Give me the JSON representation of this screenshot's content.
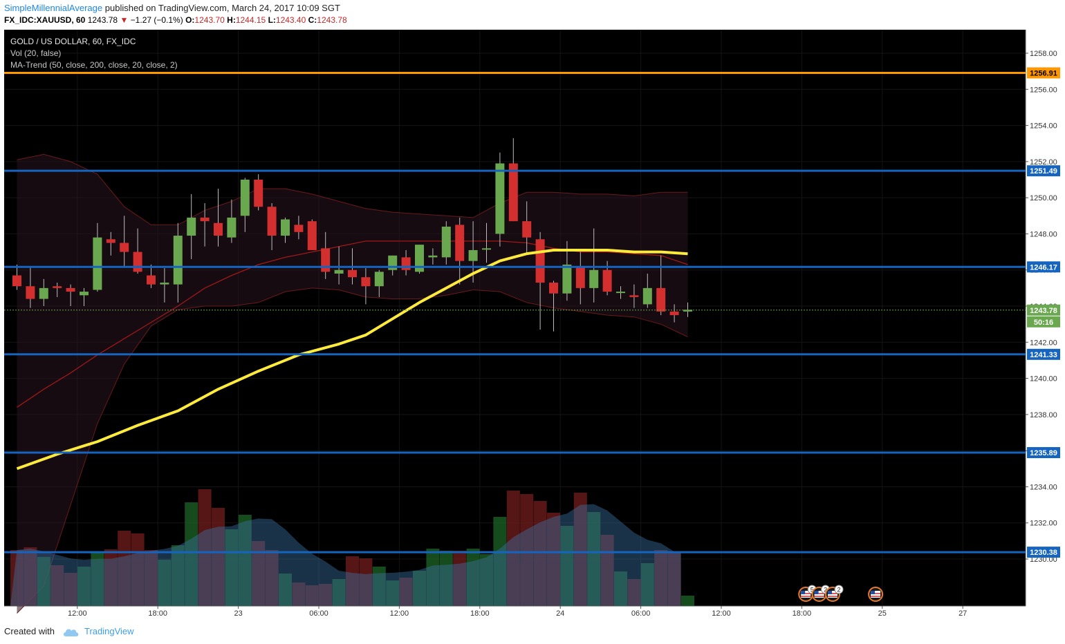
{
  "header": {
    "author": "SimpleMillennialAverage",
    "published": "published on TradingView.com, March 24, 2017 10:09 SGT",
    "symbol": "FX_IDC:XAUUSD, 60",
    "last": "1243.78",
    "change_arrow": "▼",
    "change": "−1.27 (−0.1%)",
    "o_label": "O:",
    "o": "1243.70",
    "h_label": "H:",
    "h": "1244.15",
    "l_label": "L:",
    "l": "1243.40",
    "c_label": "C:",
    "c": "1243.78"
  },
  "legend": {
    "title": "GOLD / US DOLLAR, 60, FX_IDC",
    "vol": "Vol (20, false)",
    "ma": "MA-Trend (50, close, 200, close, 20, close, 2)"
  },
  "footer": {
    "created_with": "Created with",
    "brand": "TradingView"
  },
  "colors": {
    "bg": "#000000",
    "up": "#6aa84f",
    "down": "#d32f2f",
    "ma50": "#ffeb3b",
    "hline_blue": "#1565c0",
    "hline_orange": "#ff9800",
    "axis_text": "#333333"
  },
  "chart_data": {
    "type": "candlestick",
    "ylim": [
      1227.4,
      1259.3
    ],
    "y_ticks": [
      1258,
      1256,
      1254,
      1252,
      1250,
      1248,
      1246,
      1244,
      1242,
      1240,
      1238,
      1236,
      1234,
      1232,
      1230
    ],
    "x_ticks": [
      {
        "label": "12:00",
        "index": 4.5
      },
      {
        "label": "18:00",
        "index": 10.5
      },
      {
        "label": "23",
        "index": 16.5
      },
      {
        "label": "06:00",
        "index": 22.5
      },
      {
        "label": "12:00",
        "index": 28.5
      },
      {
        "label": "18:00",
        "index": 34.5
      },
      {
        "label": "24",
        "index": 40.5
      },
      {
        "label": "06:00",
        "index": 46.5
      },
      {
        "label": "12:00",
        "index": 52.5
      },
      {
        "label": "18:00",
        "index": 58.5
      },
      {
        "label": "25",
        "index": 64.5
      },
      {
        "label": "27",
        "index": 70.5
      }
    ],
    "candles": [
      [
        1245.7,
        1246.3,
        1244.9,
        1245.1
      ],
      [
        1245.1,
        1246.2,
        1243.9,
        1244.4
      ],
      [
        1244.4,
        1245.5,
        1244.0,
        1245.0
      ],
      [
        1245.1,
        1245.3,
        1244.5,
        1245.0
      ],
      [
        1245.0,
        1245.2,
        1244.0,
        1244.8
      ],
      [
        1244.6,
        1245.0,
        1244.0,
        1244.8
      ],
      [
        1244.9,
        1248.6,
        1244.8,
        1247.8
      ],
      [
        1247.7,
        1248.1,
        1246.8,
        1247.5
      ],
      [
        1247.5,
        1249.0,
        1246.2,
        1247.0
      ],
      [
        1247.0,
        1248.3,
        1245.8,
        1245.9
      ],
      [
        1245.7,
        1246.3,
        1245.0,
        1245.2
      ],
      [
        1245.2,
        1246.1,
        1244.2,
        1245.3
      ],
      [
        1245.2,
        1248.6,
        1244.2,
        1247.9
      ],
      [
        1247.9,
        1250.2,
        1246.6,
        1248.9
      ],
      [
        1248.9,
        1249.7,
        1247.3,
        1248.7
      ],
      [
        1248.6,
        1250.5,
        1247.3,
        1247.9
      ],
      [
        1247.8,
        1249.9,
        1247.5,
        1248.9
      ],
      [
        1249.0,
        1251.1,
        1248.1,
        1251.0
      ],
      [
        1251.0,
        1251.3,
        1249.3,
        1249.5
      ],
      [
        1249.5,
        1249.7,
        1247.1,
        1247.9
      ],
      [
        1247.9,
        1248.9,
        1247.5,
        1248.8
      ],
      [
        1248.5,
        1249.0,
        1247.7,
        1248.1
      ],
      [
        1248.7,
        1248.8,
        1247.1,
        1247.1
      ],
      [
        1247.2,
        1248.1,
        1245.5,
        1245.9
      ],
      [
        1245.8,
        1247.3,
        1245.2,
        1246.0
      ],
      [
        1246.0,
        1247.2,
        1245.2,
        1245.6
      ],
      [
        1245.6,
        1246.1,
        1244.1,
        1245.1
      ],
      [
        1245.1,
        1246.0,
        1244.5,
        1245.9
      ],
      [
        1246.0,
        1246.8,
        1245.7,
        1246.8
      ],
      [
        1246.7,
        1247.1,
        1245.7,
        1246.0
      ],
      [
        1245.9,
        1247.4,
        1245.8,
        1247.4
      ],
      [
        1246.7,
        1247.2,
        1246.3,
        1246.8
      ],
      [
        1246.7,
        1248.7,
        1246.3,
        1248.4
      ],
      [
        1248.5,
        1248.9,
        1245.2,
        1246.5
      ],
      [
        1246.5,
        1248.7,
        1245.3,
        1247.1
      ],
      [
        1247.2,
        1248.6,
        1246.4,
        1247.2
      ],
      [
        1248.0,
        1252.5,
        1247.3,
        1251.9
      ],
      [
        1251.9,
        1253.3,
        1248.7,
        1248.7
      ],
      [
        1248.7,
        1249.8,
        1246.9,
        1247.8
      ],
      [
        1247.7,
        1248.1,
        1242.7,
        1245.3
      ],
      [
        1245.3,
        1245.4,
        1242.6,
        1244.7
      ],
      [
        1244.7,
        1247.6,
        1244.3,
        1246.3
      ],
      [
        1246.2,
        1247.0,
        1244.1,
        1245.0
      ],
      [
        1245.0,
        1248.3,
        1244.2,
        1246.0
      ],
      [
        1246.0,
        1246.5,
        1244.6,
        1244.8
      ],
      [
        1244.8,
        1245.1,
        1244.4,
        1244.8
      ],
      [
        1244.6,
        1245.2,
        1243.9,
        1244.5
      ],
      [
        1244.1,
        1245.8,
        1243.9,
        1245.0
      ],
      [
        1245.0,
        1246.8,
        1243.5,
        1243.7
      ],
      [
        1243.7,
        1244.1,
        1243.1,
        1243.5
      ],
      [
        1243.7,
        1244.2,
        1243.4,
        1243.8
      ]
    ],
    "volume": [
      81,
      85,
      71,
      59,
      48,
      57,
      77,
      82,
      109,
      105,
      81,
      67,
      88,
      150,
      169,
      142,
      111,
      132,
      94,
      81,
      47,
      34,
      30,
      32,
      39,
      72,
      69,
      57,
      37,
      41,
      51,
      83,
      80,
      80,
      83,
      75,
      129,
      167,
      162,
      152,
      135,
      116,
      164,
      136,
      103,
      50,
      39,
      62,
      81,
      79,
      15
    ],
    "vol_ylim": [
      0,
      220
    ],
    "ma50": [
      [
        0,
        1235.0
      ],
      [
        3,
        1235.8
      ],
      [
        6,
        1236.5
      ],
      [
        9,
        1237.4
      ],
      [
        12,
        1238.2
      ],
      [
        15,
        1239.4
      ],
      [
        18,
        1240.4
      ],
      [
        21,
        1241.3
      ],
      [
        24,
        1241.9
      ],
      [
        26,
        1242.4
      ],
      [
        28,
        1243.3
      ],
      [
        30,
        1244.2
      ],
      [
        32,
        1245.0
      ],
      [
        34,
        1245.8
      ],
      [
        36,
        1246.5
      ],
      [
        38,
        1246.9
      ],
      [
        40,
        1247.1
      ],
      [
        42,
        1247.1
      ],
      [
        44,
        1247.1
      ],
      [
        46,
        1247.0
      ],
      [
        48,
        1247.0
      ],
      [
        50,
        1246.9
      ]
    ],
    "ma200": [
      [
        0,
        1238.4
      ],
      [
        2,
        1239.4
      ],
      [
        4,
        1240.3
      ],
      [
        6,
        1241.3
      ],
      [
        8,
        1242.2
      ],
      [
        10,
        1243.1
      ],
      [
        12,
        1244.0
      ],
      [
        14,
        1245.0
      ],
      [
        16,
        1245.7
      ],
      [
        18,
        1246.3
      ],
      [
        20,
        1246.7
      ],
      [
        22,
        1247.0
      ],
      [
        24,
        1247.3
      ],
      [
        26,
        1247.6
      ],
      [
        28,
        1247.6
      ],
      [
        30,
        1247.6
      ],
      [
        32,
        1247.6
      ],
      [
        34,
        1247.6
      ],
      [
        36,
        1247.6
      ],
      [
        38,
        1247.5
      ],
      [
        40,
        1247.2
      ],
      [
        42,
        1247.0
      ],
      [
        44,
        1247.0
      ],
      [
        46,
        1246.9
      ],
      [
        48,
        1246.8
      ],
      [
        50,
        1246.3
      ]
    ],
    "bb_upper": [
      [
        0,
        1252.1
      ],
      [
        2,
        1252.4
      ],
      [
        4,
        1252.0
      ],
      [
        6,
        1251.3
      ],
      [
        8,
        1249.5
      ],
      [
        10,
        1248.5
      ],
      [
        12,
        1248.5
      ],
      [
        14,
        1249.3
      ],
      [
        16,
        1249.8
      ],
      [
        18,
        1250.5
      ],
      [
        20,
        1250.5
      ],
      [
        22,
        1250.2
      ],
      [
        24,
        1249.8
      ],
      [
        26,
        1249.4
      ],
      [
        28,
        1249.2
      ],
      [
        30,
        1249.1
      ],
      [
        32,
        1249.0
      ],
      [
        34,
        1248.9
      ],
      [
        36,
        1249.7
      ],
      [
        38,
        1250.3
      ],
      [
        40,
        1250.3
      ],
      [
        42,
        1250.2
      ],
      [
        44,
        1250.2
      ],
      [
        46,
        1250.1
      ],
      [
        48,
        1250.3
      ],
      [
        50,
        1250.3
      ]
    ],
    "bb_lower": [
      [
        0,
        1227.0
      ],
      [
        2,
        1228.5
      ],
      [
        4,
        1233.0
      ],
      [
        6,
        1237.5
      ],
      [
        8,
        1240.8
      ],
      [
        10,
        1242.9
      ],
      [
        12,
        1243.8
      ],
      [
        14,
        1244.0
      ],
      [
        16,
        1244.0
      ],
      [
        18,
        1244.2
      ],
      [
        20,
        1244.8
      ],
      [
        22,
        1245.0
      ],
      [
        24,
        1244.9
      ],
      [
        26,
        1244.5
      ],
      [
        28,
        1244.4
      ],
      [
        30,
        1244.4
      ],
      [
        32,
        1244.6
      ],
      [
        34,
        1244.9
      ],
      [
        36,
        1244.8
      ],
      [
        38,
        1244.2
      ],
      [
        40,
        1243.9
      ],
      [
        42,
        1243.7
      ],
      [
        44,
        1243.5
      ],
      [
        46,
        1243.4
      ],
      [
        48,
        1243.0
      ],
      [
        50,
        1242.3
      ]
    ],
    "hlines": [
      {
        "value": 1256.91,
        "label": "1256.91",
        "color": "#ff9800"
      },
      {
        "value": 1251.49,
        "label": "1251.49",
        "color": "#1565c0"
      },
      {
        "value": 1246.17,
        "label": "1246.17",
        "color": "#1565c0"
      },
      {
        "value": 1241.33,
        "label": "1241.33",
        "color": "#1565c0"
      },
      {
        "value": 1235.89,
        "label": "1235.89",
        "color": "#1565c0"
      },
      {
        "value": 1230.38,
        "label": "1230.38",
        "color": "#1565c0"
      }
    ],
    "last_price": {
      "value": 1243.78,
      "label": "1243.78",
      "countdown": "50:16"
    },
    "events": [
      {
        "index": 58.8,
        "count": "5"
      },
      {
        "index": 59.8,
        "count": "2"
      },
      {
        "index": 60.8,
        "count": "2"
      },
      {
        "index": 64.0,
        "count": ""
      }
    ]
  }
}
